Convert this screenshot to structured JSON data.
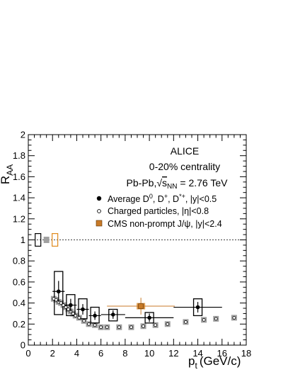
{
  "chart_data": {
    "type": "scatter",
    "title": "",
    "xlabel": "p_t (GeV/c)",
    "ylabel": "R_AA",
    "xlim": [
      0,
      18
    ],
    "ylim": [
      0,
      2
    ],
    "x_ticks": [
      "0",
      "2",
      "4",
      "6",
      "8",
      "10",
      "12",
      "14",
      "16",
      "18"
    ],
    "y_ticks": [
      "0",
      "0.2",
      "0.4",
      "0.6",
      "0.8",
      "1",
      "1.2",
      "1.4",
      "1.6",
      "1.8",
      "2"
    ],
    "reference_line": {
      "y": 1,
      "style": "dotted"
    },
    "annotations": {
      "experiment": "ALICE",
      "centrality": "0-20% centrality",
      "system": "Pb-Pb, √s_NN = 2.76 TeV"
    },
    "legend": {
      "placement": "top-right",
      "entries": [
        "Average D⁰, D⁺, D*⁺, |y|<0.5",
        "Charged particles, |η|<0.8",
        "CMS non-prompt J/ψ, |y|<2.4"
      ]
    },
    "colors": {
      "d_meson": "#000000",
      "charged": "#ffffff",
      "charged_syst": "#a0a0a0",
      "cms": "#c87a28",
      "cms_syst": "#d88a30",
      "norm_box_d": "#000000",
      "norm_box_charged": "#a0a0a0",
      "norm_box_cms": "#e08a1c"
    },
    "normalization_boxes": [
      {
        "series": "d_meson",
        "x": 0.8,
        "y": 1,
        "half_height": 0.06
      },
      {
        "series": "charged",
        "x": 1.5,
        "y": 1,
        "half_height": 0.03
      },
      {
        "series": "cms",
        "x": 2.2,
        "y": 1,
        "half_height": 0.06
      }
    ],
    "series": [
      {
        "name": "Average D⁰, D⁺, D*⁺, |y|<0.5",
        "marker": "filled-circle",
        "points": [
          {
            "x": 2.5,
            "y": 0.51,
            "xerr": 0.5,
            "stat": 0.1,
            "syst_lo": 0.22,
            "syst_hi": 0.19
          },
          {
            "x": 3.5,
            "y": 0.38,
            "xerr": 0.5,
            "stat": 0.06,
            "syst_lo": 0.1,
            "syst_hi": 0.1
          },
          {
            "x": 4.5,
            "y": 0.34,
            "xerr": 0.5,
            "stat": 0.05,
            "syst_lo": 0.09,
            "syst_hi": 0.1
          },
          {
            "x": 5.5,
            "y": 0.28,
            "xerr": 0.5,
            "stat": 0.04,
            "syst_lo": 0.07,
            "syst_hi": 0.08
          },
          {
            "x": 7.0,
            "y": 0.29,
            "xerr": 1.0,
            "stat": 0.04,
            "syst_lo": 0.06,
            "syst_hi": 0.05
          },
          {
            "x": 10.0,
            "y": 0.26,
            "xerr": 2.0,
            "stat": 0.04,
            "syst_lo": 0.05,
            "syst_hi": 0.05
          },
          {
            "x": 14.0,
            "y": 0.36,
            "xerr": 2.0,
            "stat": 0.05,
            "syst_lo": 0.08,
            "syst_hi": 0.08
          }
        ]
      },
      {
        "name": "Charged particles, |η|<0.8",
        "marker": "open-circle",
        "points": [
          {
            "x": 2.1,
            "y": 0.44
          },
          {
            "x": 2.3,
            "y": 0.43
          },
          {
            "x": 2.5,
            "y": 0.41
          },
          {
            "x": 2.7,
            "y": 0.4
          },
          {
            "x": 2.9,
            "y": 0.38
          },
          {
            "x": 3.1,
            "y": 0.36
          },
          {
            "x": 3.3,
            "y": 0.34
          },
          {
            "x": 3.5,
            "y": 0.32
          },
          {
            "x": 3.7,
            "y": 0.3
          },
          {
            "x": 3.9,
            "y": 0.28
          },
          {
            "x": 4.2,
            "y": 0.26
          },
          {
            "x": 4.6,
            "y": 0.23
          },
          {
            "x": 5.0,
            "y": 0.2
          },
          {
            "x": 5.5,
            "y": 0.19
          },
          {
            "x": 6.0,
            "y": 0.17
          },
          {
            "x": 6.5,
            "y": 0.17
          },
          {
            "x": 7.5,
            "y": 0.17
          },
          {
            "x": 8.5,
            "y": 0.17
          },
          {
            "x": 9.5,
            "y": 0.18
          },
          {
            "x": 10.5,
            "y": 0.19
          },
          {
            "x": 11.5,
            "y": 0.2
          },
          {
            "x": 13.0,
            "y": 0.22
          },
          {
            "x": 14.5,
            "y": 0.24
          },
          {
            "x": 15.5,
            "y": 0.25
          },
          {
            "x": 17.0,
            "y": 0.26
          }
        ]
      },
      {
        "name": "CMS non-prompt J/ψ, |y|<2.4",
        "marker": "filled-square",
        "points": [
          {
            "x": 9.3,
            "y": 0.37,
            "xerr": 2.8,
            "stat": 0.08,
            "syst_lo": 0.03,
            "syst_hi": 0.03
          }
        ]
      }
    ]
  }
}
